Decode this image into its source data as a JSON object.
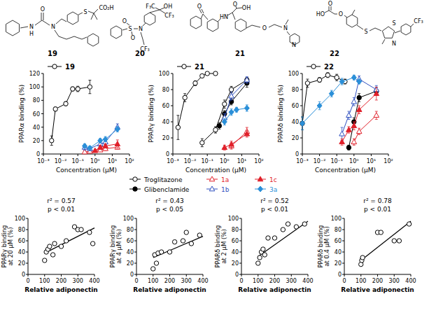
{
  "structures": [
    {
      "label": "19",
      "atoms": [
        "N",
        "H",
        "O",
        "N",
        "S",
        "CO₂H"
      ]
    },
    {
      "label": "20",
      "atoms": [
        "F₃C",
        "OH",
        "CF₃",
        "O",
        "S",
        "O",
        "N",
        "CF₃"
      ]
    },
    {
      "label": "21",
      "atoms": [
        "O",
        "O",
        "OH",
        "HN",
        "O",
        "N",
        "N"
      ]
    },
    {
      "label": "22",
      "atoms": [
        "O",
        "HO",
        "O",
        "S",
        "S",
        "N",
        "CF₃"
      ]
    }
  ],
  "chart_data": [
    {
      "type": "line",
      "log": "x",
      "x_label": "Concentration (μM)",
      "y_label": "PPARα binding (%)",
      "xlim": [
        0.001,
        100
      ],
      "xticks": [
        {
          "value": 0.001,
          "label": "10⁻³"
        },
        {
          "value": 0.01,
          "label": "10⁻²"
        },
        {
          "value": 0.1,
          "label": "10⁻¹"
        },
        {
          "value": 1,
          "label": "10⁰"
        },
        {
          "value": 10,
          "label": "10¹"
        },
        {
          "value": 100,
          "label": "10²"
        }
      ],
      "ylim": [
        0,
        120
      ],
      "yticks": [
        0,
        20,
        40,
        60,
        80,
        100,
        120
      ],
      "series": [
        {
          "name": "19",
          "color": "#000000",
          "marker": "circle-open",
          "line_style": "solid",
          "x": [
            0.003,
            0.005,
            0.02,
            0.05,
            0.1,
            0.5
          ],
          "values": [
            20,
            67,
            75,
            97,
            97,
            100
          ],
          "errors": [
            7,
            3,
            3,
            3,
            4,
            10
          ]
        },
        {
          "name": "1a",
          "color": "#e0202a",
          "marker": "triangle-open",
          "line_style": "solid",
          "x": [
            0.25,
            0.5,
            2,
            4,
            20
          ],
          "values": [
            3,
            4,
            6,
            8,
            10
          ],
          "errors": [
            3,
            2,
            2,
            3,
            3
          ]
        },
        {
          "name": "1b",
          "color": "#3050c0",
          "marker": "triangle-open",
          "line_style": "solid",
          "x": [
            0.25,
            0.5,
            2,
            4,
            20
          ],
          "values": [
            10,
            8,
            15,
            18,
            40
          ],
          "errors": [
            4,
            3,
            3,
            4,
            5
          ]
        },
        {
          "name": "1c",
          "color": "#e0202a",
          "marker": "triangle",
          "line_style": "solid",
          "x": [
            1,
            2,
            4,
            20
          ],
          "values": [
            5,
            10,
            12,
            15
          ],
          "errors": [
            2,
            3,
            3,
            6
          ]
        },
        {
          "name": "3a",
          "color": "#2a8fd8",
          "marker": "diamond",
          "line_style": "solid",
          "x": [
            0.25,
            0.5,
            2,
            4,
            20
          ],
          "values": [
            12,
            9,
            20,
            22,
            37
          ],
          "errors": [
            3,
            3,
            3,
            4,
            4
          ]
        }
      ]
    },
    {
      "type": "line",
      "log": "x",
      "x_label": "Concentration (μM)",
      "y_label": "PPARγ binding (%)",
      "xlim": [
        0.001,
        100
      ],
      "xticks": [
        {
          "value": 0.001,
          "label": "10⁻³"
        },
        {
          "value": 0.01,
          "label": "10⁻²"
        },
        {
          "value": 0.1,
          "label": "10⁻¹"
        },
        {
          "value": 1,
          "label": "10⁰"
        },
        {
          "value": 10,
          "label": "10¹"
        },
        {
          "value": 100,
          "label": "10²"
        }
      ],
      "ylim": [
        0,
        100
      ],
      "yticks": [
        0,
        20,
        40,
        60,
        80,
        100
      ],
      "series": [
        {
          "name": "21",
          "color": "#000000",
          "marker": "circle-open",
          "line_style": "solid",
          "x": [
            0.002,
            0.005,
            0.02,
            0.05,
            0.1,
            0.3
          ],
          "values": [
            33,
            70,
            88,
            97,
            100,
            100
          ],
          "errors": [
            15,
            5,
            3,
            2,
            2,
            2
          ]
        },
        {
          "name": "Troglitazone",
          "color": "#000000",
          "marker": "circle-open",
          "line_style": "solid",
          "x": [
            0.05,
            0.3,
            1,
            2.5,
            20
          ],
          "values": [
            14,
            30,
            62,
            80,
            92
          ],
          "errors": [
            5,
            4,
            5,
            4,
            3
          ]
        },
        {
          "name": "Glibenclamide",
          "color": "#000000",
          "marker": "circle",
          "line_style": "solid",
          "x": [
            0.5,
            1,
            2.5,
            20
          ],
          "values": [
            35,
            50,
            65,
            88
          ],
          "errors": [
            4,
            4,
            4,
            5
          ]
        },
        {
          "name": "1a",
          "color": "#e0202a",
          "marker": "triangle-open",
          "line_style": "solid",
          "x": [
            2.5,
            20
          ],
          "values": [
            10,
            28
          ],
          "errors": [
            4,
            5
          ]
        },
        {
          "name": "1b",
          "color": "#3050c0",
          "marker": "triangle-open",
          "line_style": "solid",
          "x": [
            1,
            2.5,
            20
          ],
          "values": [
            45,
            72,
            92
          ],
          "errors": [
            5,
            5,
            4
          ]
        },
        {
          "name": "1c",
          "color": "#e0202a",
          "marker": "triangle",
          "line_style": "solid",
          "x": [
            1,
            2.5,
            20
          ],
          "values": [
            8,
            12,
            25
          ],
          "errors": [
            3,
            4,
            4
          ]
        },
        {
          "name": "3a",
          "color": "#2a8fd8",
          "marker": "diamond",
          "line_style": "solid",
          "x": [
            1,
            2.5,
            5,
            20
          ],
          "values": [
            40,
            52,
            55,
            57
          ],
          "errors": [
            4,
            4,
            3,
            4
          ]
        }
      ]
    },
    {
      "type": "line",
      "log": "x",
      "x_label": "Concentration (μM)",
      "y_label": "PPARδ binding (%)",
      "xlim": [
        0.001,
        100
      ],
      "xticks": [
        {
          "value": 0.001,
          "label": "10⁻³"
        },
        {
          "value": 0.01,
          "label": "10⁻²"
        },
        {
          "value": 0.1,
          "label": "10⁻¹"
        },
        {
          "value": 1,
          "label": "10⁰"
        },
        {
          "value": 10,
          "label": "10¹"
        },
        {
          "value": 100,
          "label": "10²"
        }
      ],
      "ylim": [
        0,
        100
      ],
      "yticks": [
        0,
        20,
        40,
        60,
        80,
        100
      ],
      "series": [
        {
          "name": "22",
          "color": "#000000",
          "marker": "circle-open",
          "line_style": "solid",
          "x": [
            0.001,
            0.002,
            0.01,
            0.03,
            0.1,
            0.3
          ],
          "values": [
            38,
            88,
            92,
            98,
            95,
            90
          ],
          "errors": [
            8,
            5,
            3,
            3,
            4,
            3
          ]
        },
        {
          "name": "Glibenclamide",
          "color": "#000000",
          "marker": "circle",
          "line_style": "solid",
          "x": [
            0.5,
            1,
            2,
            20
          ],
          "values": [
            8,
            40,
            70,
            78
          ],
          "errors": [
            3,
            5,
            5,
            5
          ]
        },
        {
          "name": "1a",
          "color": "#e0202a",
          "marker": "triangle-open",
          "line_style": "solid",
          "x": [
            1,
            2,
            20
          ],
          "values": [
            15,
            28,
            48
          ],
          "errors": [
            4,
            4,
            5
          ]
        },
        {
          "name": "1b",
          "color": "#3050c0",
          "marker": "triangle-open",
          "line_style": "solid",
          "x": [
            0.2,
            0.5,
            1,
            2,
            20
          ],
          "values": [
            25,
            48,
            65,
            93,
            80
          ],
          "errors": [
            8,
            5,
            5,
            4,
            5
          ]
        },
        {
          "name": "1c",
          "color": "#e0202a",
          "marker": "triangle",
          "line_style": "solid",
          "x": [
            0.2,
            0.5,
            1,
            2,
            20
          ],
          "values": [
            15,
            30,
            35,
            55,
            75
          ],
          "errors": [
            4,
            4,
            5,
            5,
            8
          ]
        },
        {
          "name": "3a",
          "color": "#2a8fd8",
          "marker": "diamond",
          "line_style": "solid",
          "x": [
            0.001,
            0.01,
            0.05,
            0.2,
            1,
            2
          ],
          "values": [
            38,
            60,
            75,
            90,
            95,
            90
          ],
          "errors": [
            8,
            5,
            4,
            4,
            3,
            3
          ]
        }
      ]
    },
    {
      "type": "scatter",
      "title": "r² = 0.57",
      "subtitle": "p < 0.01",
      "x_label": "Relative adiponectin",
      "y_label": [
        "PPARγ binding",
        "at 20 μM (%)"
      ],
      "xlim": [
        0,
        400
      ],
      "xticks": [
        0,
        100,
        200,
        300,
        400
      ],
      "ylim": [
        0,
        100
      ],
      "yticks": [
        0,
        20,
        40,
        60,
        80,
        100
      ],
      "color": "#000000",
      "marker": "circle-open",
      "x": [
        100,
        110,
        120,
        130,
        150,
        160,
        200,
        230,
        280,
        300,
        320,
        370,
        390
      ],
      "values": [
        25,
        40,
        45,
        50,
        35,
        55,
        50,
        60,
        85,
        80,
        80,
        75,
        55
      ],
      "fit": {
        "x": [
          100,
          400
        ],
        "values": [
          38,
          83
        ]
      }
    },
    {
      "type": "scatter",
      "title": "r² = 0.43",
      "subtitle": "p < 0.05",
      "x_label": "Relative adiponectin",
      "y_label": [
        "PPARγ binding",
        "at 4 μM (%)"
      ],
      "xlim": [
        0,
        400
      ],
      "xticks": [
        0,
        100,
        200,
        300,
        400
      ],
      "ylim": [
        0,
        100
      ],
      "yticks": [
        0,
        20,
        40,
        60,
        80,
        100
      ],
      "color": "#000000",
      "marker": "circle-open",
      "x": [
        100,
        110,
        120,
        130,
        150,
        200,
        230,
        280,
        300,
        330,
        380
      ],
      "values": [
        10,
        35,
        20,
        38,
        40,
        40,
        58,
        60,
        75,
        55,
        70
      ],
      "fit": {
        "x": [
          100,
          400
        ],
        "values": [
          30,
          68
        ]
      }
    },
    {
      "type": "scatter",
      "title": "r² = 0.52",
      "subtitle": "p < 0.01",
      "x_label": "Relative adiponectin",
      "y_label": [
        "PPARδ binding",
        "at 2 μM (%)"
      ],
      "xlim": [
        0,
        400
      ],
      "xticks": [
        0,
        100,
        200,
        300,
        400
      ],
      "ylim": [
        0,
        100
      ],
      "yticks": [
        0,
        20,
        40,
        60,
        80,
        100
      ],
      "color": "#000000",
      "marker": "circle-open",
      "x": [
        100,
        110,
        120,
        130,
        140,
        160,
        200,
        250,
        280,
        330,
        380
      ],
      "values": [
        20,
        30,
        40,
        45,
        35,
        65,
        65,
        80,
        90,
        85,
        90
      ],
      "fit": {
        "x": [
          100,
          400
        ],
        "values": [
          32,
          95
        ]
      }
    },
    {
      "type": "scatter",
      "title": "r² = 0.78",
      "subtitle": "p < 0.01",
      "x_label": "Relative adiponectin",
      "y_label": [
        "PPARδ binding",
        "at 0.4 μM (%)"
      ],
      "xlim": [
        0,
        400
      ],
      "xticks": [
        0,
        100,
        200,
        300,
        400
      ],
      "ylim": [
        0,
        100
      ],
      "yticks": [
        0,
        20,
        40,
        60,
        80,
        100
      ],
      "color": "#000000",
      "marker": "circle-open",
      "x": [
        100,
        105,
        110,
        200,
        220,
        300,
        330,
        390
      ],
      "values": [
        18,
        25,
        30,
        75,
        75,
        60,
        60,
        90
      ],
      "fit": {
        "x": [
          100,
          400
        ],
        "values": [
          25,
          95
        ]
      }
    }
  ]
}
